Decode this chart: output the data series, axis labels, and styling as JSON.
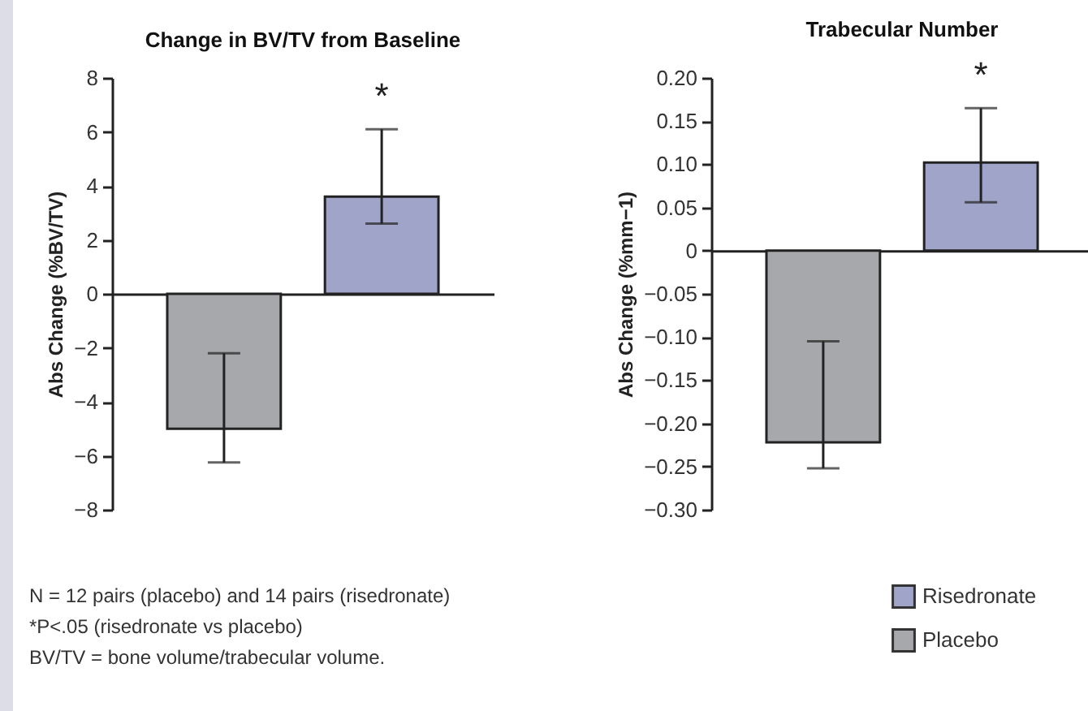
{
  "chart_data": [
    {
      "type": "bar",
      "title": "Change in BV/TV from Baseline",
      "ylabel": "Abs Change (%BV/TV)",
      "categories": [
        null,
        null
      ],
      "series": [
        {
          "name": "Risedronate",
          "color": "#a0a4c8",
          "values": [
            null,
            3.6
          ],
          "errors": [
            null,
            [
              2.6,
              6.1
            ]
          ]
        },
        {
          "name": "Placebo",
          "color": "#a7a8ab",
          "values": [
            -5.0,
            null
          ],
          "errors": [
            [
              -6.25,
              -2.2
            ],
            null
          ]
        }
      ],
      "ylim": [
        -8,
        8
      ],
      "yticks": [
        {
          "value": -8,
          "label": "−8"
        },
        {
          "value": -6,
          "label": "−6"
        },
        {
          "value": -4,
          "label": "−4"
        },
        {
          "value": -2,
          "label": "−2"
        },
        0,
        2,
        4,
        6,
        8
      ],
      "annotations": [
        {
          "text": "*",
          "y": 6.1
        },
        "N = 12 pairs (placebo) and 14 pairs (risedronate)",
        "*P<.05 (risedronate vs placebo)",
        "BV/TV = bone volume/trabecular volume."
      ],
      "legend": "bottom right"
    },
    {
      "type": "bar",
      "title": "Trabecular Number",
      "ylabel": "Abs Change (%mm−1)",
      "categories": [
        null,
        null
      ],
      "series": [
        {
          "name": "Risedronate",
          "color": "#a0a4c8",
          "values": [
            null,
            0.102
          ],
          "errors": [
            null,
            [
              0.056,
              0.165
            ]
          ]
        },
        {
          "name": "Placebo",
          "color": "#a7a8ab",
          "values": [
            -0.222,
            null
          ],
          "errors": [
            [
              -0.252,
              -0.105
            ],
            null
          ]
        }
      ],
      "ylim": [
        -0.3,
        0.2
      ],
      "yticks": [
        {
          "value": -0.3,
          "label": "−0.30"
        },
        {
          "value": -0.25,
          "label": "−0.25"
        },
        {
          "value": -0.2,
          "label": "−0.20"
        },
        {
          "value": -0.15,
          "label": "−0.15"
        },
        {
          "value": -0.1,
          "label": "−0.10"
        },
        {
          "value": -0.05,
          "label": "−0.05"
        },
        0,
        {
          "value": 0.05,
          "label": "0.05"
        },
        {
          "value": 0.1,
          "label": "0.10"
        },
        {
          "value": 0.15,
          "label": "0.15"
        },
        {
          "value": 0.2,
          "label": "0.20"
        }
      ],
      "annotations": [
        {
          "text": "*",
          "y": 0.165
        }
      ],
      "legend": "bottom right"
    }
  ]
}
